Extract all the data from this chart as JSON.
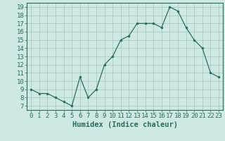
{
  "x": [
    0,
    1,
    2,
    3,
    4,
    5,
    6,
    7,
    8,
    9,
    10,
    11,
    12,
    13,
    14,
    15,
    16,
    17,
    18,
    19,
    20,
    21,
    22,
    23
  ],
  "y": [
    9,
    8.5,
    8.5,
    8,
    7.5,
    7,
    10.5,
    8,
    9,
    12,
    13,
    15,
    15.5,
    17,
    17,
    17,
    16.5,
    19,
    18.5,
    16.5,
    15,
    14,
    11,
    10.5
  ],
  "line_color": "#2e6b5e",
  "marker": "o",
  "marker_size": 2,
  "bg_color": "#cde8e5",
  "grid_color": "#9dc8c2",
  "xlabel": "Humidex (Indice chaleur)",
  "ylim": [
    6.5,
    19.5
  ],
  "xlim": [
    -0.5,
    23.5
  ],
  "yticks": [
    7,
    8,
    9,
    10,
    11,
    12,
    13,
    14,
    15,
    16,
    17,
    18,
    19
  ],
  "xticks": [
    0,
    1,
    2,
    3,
    4,
    5,
    6,
    7,
    8,
    9,
    10,
    11,
    12,
    13,
    14,
    15,
    16,
    17,
    18,
    19,
    20,
    21,
    22,
    23
  ],
  "tick_color": "#2e6b5e",
  "label_color": "#2e6b5e",
  "tick_fontsize": 6.5,
  "xlabel_fontsize": 7.5
}
